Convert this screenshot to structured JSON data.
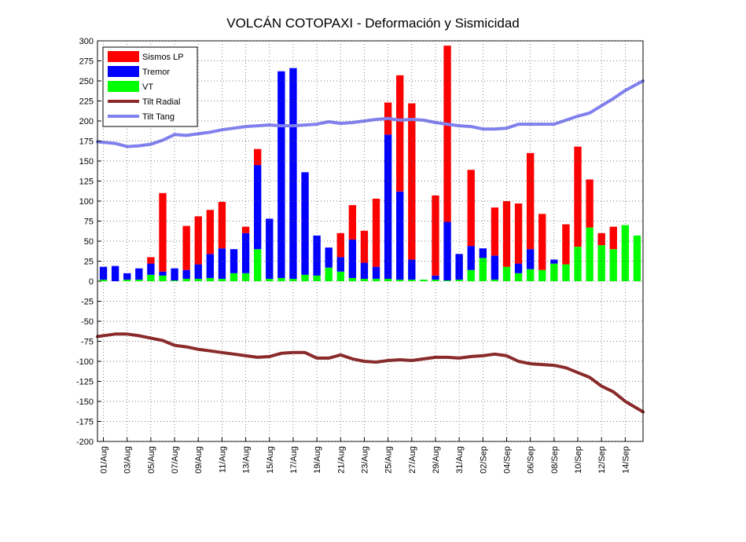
{
  "chart_data": {
    "type": "bar",
    "title": "VOLCÁN COTOPAXI - Deformación y Sismicidad",
    "xlabel": "",
    "ylabel": "",
    "ylim": [
      -200,
      300
    ],
    "yticks": [
      300,
      275,
      250,
      225,
      200,
      175,
      150,
      125,
      100,
      75,
      50,
      25,
      0,
      -25,
      -50,
      -75,
      -100,
      -125,
      -150,
      -175,
      -200
    ],
    "x_tick_labels": [
      "01/Aug",
      "03/Aug",
      "05/Aug",
      "07/Aug",
      "09/Aug",
      "11/Aug",
      "13/Aug",
      "15/Aug",
      "17/Aug",
      "19/Aug",
      "21/Aug",
      "23/Aug",
      "25/Aug",
      "27/Aug",
      "29/Aug",
      "31/Aug",
      "02/Sep",
      "04/Sep",
      "06/Sep",
      "08/Sep",
      "10/Sep",
      "12/Sep",
      "14/Sep"
    ],
    "n_days": 46,
    "grid": true,
    "stacked": true,
    "legend_position": "top-left",
    "series": [
      {
        "name": "Sismos LP",
        "kind": "bar",
        "color": "#ff0000",
        "values": [
          0,
          0,
          0,
          0,
          8,
          98,
          0,
          55,
          60,
          55,
          58,
          0,
          8,
          20,
          0,
          0,
          0,
          0,
          0,
          0,
          30,
          43,
          40,
          85,
          40,
          145,
          195,
          0,
          100,
          220,
          0,
          95,
          0,
          60,
          82,
          75,
          120,
          70,
          0,
          50,
          125,
          60,
          15,
          28,
          0,
          0
        ]
      },
      {
        "name": "Tremor",
        "kind": "bar",
        "color": "#0000ff",
        "values": [
          16,
          19,
          8,
          14,
          14,
          5,
          15,
          11,
          18,
          30,
          38,
          30,
          50,
          105,
          75,
          258,
          263,
          128,
          50,
          25,
          18,
          48,
          20,
          15,
          180,
          110,
          25,
          0,
          5,
          73,
          32,
          30,
          12,
          30,
          0,
          12,
          25,
          0,
          5,
          0,
          0,
          0,
          0,
          0,
          0,
          0
        ]
      },
      {
        "name": "VT",
        "kind": "bar",
        "color": "#00ff00",
        "values": [
          2,
          0,
          2,
          2,
          8,
          7,
          1,
          3,
          3,
          4,
          3,
          10,
          10,
          40,
          3,
          4,
          3,
          8,
          7,
          17,
          12,
          4,
          3,
          3,
          3,
          2,
          2,
          2,
          2,
          1,
          2,
          14,
          29,
          2,
          18,
          10,
          15,
          14,
          22,
          21,
          43,
          67,
          45,
          40,
          70,
          57
        ]
      },
      {
        "name": "Tilt Radial",
        "kind": "line",
        "color": "#8b2a2a",
        "values": [
          -69,
          -66,
          -66,
          -68,
          -71,
          -74,
          -80,
          -82,
          -85,
          -87,
          -89,
          -91,
          -93,
          -95,
          -94,
          -90,
          -89,
          -89,
          -96,
          -96,
          -92,
          -97,
          -100,
          -101,
          -99,
          -98,
          -99,
          -97,
          -95,
          -95,
          -96,
          -94,
          -93,
          -91,
          -93,
          -100,
          -103,
          -104,
          -105,
          -108,
          -114,
          -120,
          -131,
          -138,
          -150,
          -163
        ]
      },
      {
        "name": "Tilt Tang",
        "kind": "line",
        "color": "#8080ee",
        "values": [
          174,
          172,
          168,
          169,
          171,
          176,
          183,
          182,
          184,
          186,
          189,
          191,
          193,
          194,
          195,
          194,
          194,
          195,
          196,
          199,
          197,
          198,
          200,
          202,
          203,
          201,
          202,
          201,
          198,
          196,
          194,
          193,
          190,
          190,
          191,
          196,
          196,
          196,
          196,
          201,
          206,
          210,
          219,
          228,
          238,
          250
        ]
      }
    ]
  }
}
